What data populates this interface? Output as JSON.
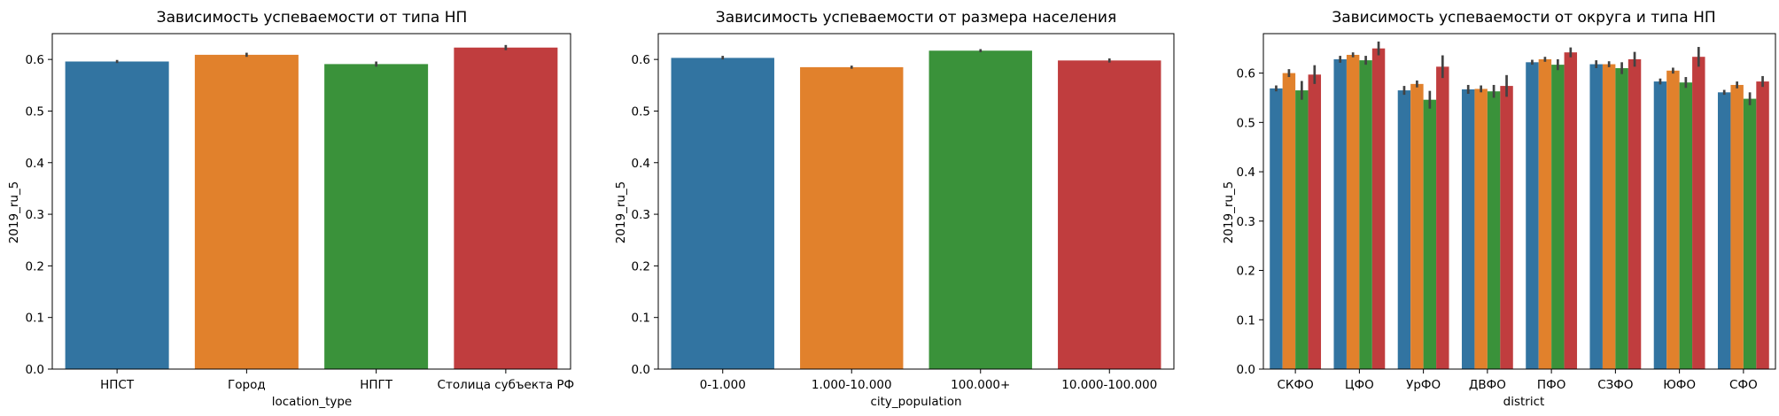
{
  "figure": {
    "background": "#ffffff"
  },
  "palette": [
    "#3274a1",
    "#e1812c",
    "#3a923a",
    "#c03d3e"
  ],
  "chart_data": [
    {
      "type": "bar",
      "title": "Зависимость успеваемости от типа НП",
      "xlabel": "location_type",
      "ylabel": "2019_ru_5",
      "ylim": [
        0,
        0.65
      ],
      "yticks": [
        "0.0",
        "0.1",
        "0.2",
        "0.3",
        "0.4",
        "0.5",
        "0.6"
      ],
      "grid": false,
      "categories": [
        "НПСТ",
        "Город",
        "НПГТ",
        "Столица субъекта РФ"
      ],
      "values": [
        0.596,
        0.609,
        0.591,
        0.623
      ],
      "ci": [
        [
          0.593,
          0.599
        ],
        [
          0.605,
          0.613
        ],
        [
          0.586,
          0.596
        ],
        [
          0.618,
          0.628
        ]
      ]
    },
    {
      "type": "bar",
      "title": "Зависимость успеваемости от размера населения",
      "xlabel": "city_population",
      "ylabel": "2019_ru_5",
      "ylim": [
        0,
        0.65
      ],
      "yticks": [
        "0.0",
        "0.1",
        "0.2",
        "0.3",
        "0.4",
        "0.5",
        "0.6"
      ],
      "grid": false,
      "categories": [
        "0-1.000",
        "1.000-10.000",
        "100.000+",
        "10.000-100.000"
      ],
      "values": [
        0.603,
        0.585,
        0.617,
        0.598
      ],
      "ci": [
        [
          0.6,
          0.607
        ],
        [
          0.582,
          0.588
        ],
        [
          0.614,
          0.62
        ],
        [
          0.594,
          0.602
        ]
      ]
    },
    {
      "type": "bar",
      "title": "Зависимость успеваемости от округа и типа НП",
      "xlabel": "district",
      "ylabel": "2019_ru_5",
      "ylim": [
        0,
        0.68
      ],
      "yticks": [
        "0.0",
        "0.1",
        "0.2",
        "0.3",
        "0.4",
        "0.5",
        "0.6"
      ],
      "grid": false,
      "categories": [
        "СКФО",
        "ЦФО",
        "УрФО",
        "ДВФО",
        "ПФО",
        "СЗФО",
        "ЮФО",
        "СФО"
      ],
      "series": [
        {
          "values": [
            0.569,
            0.628,
            0.565,
            0.567,
            0.622,
            0.618,
            0.583,
            0.561
          ],
          "ci": [
            [
              0.563,
              0.575
            ],
            [
              0.621,
              0.635
            ],
            [
              0.556,
              0.574
            ],
            [
              0.558,
              0.576
            ],
            [
              0.617,
              0.627
            ],
            [
              0.61,
              0.626
            ],
            [
              0.577,
              0.589
            ],
            [
              0.556,
              0.566
            ]
          ]
        },
        {
          "values": [
            0.6,
            0.637,
            0.578,
            0.568,
            0.628,
            0.618,
            0.605,
            0.576
          ],
          "ci": [
            [
              0.592,
              0.608
            ],
            [
              0.632,
              0.642
            ],
            [
              0.571,
              0.585
            ],
            [
              0.561,
              0.575
            ],
            [
              0.623,
              0.633
            ],
            [
              0.612,
              0.624
            ],
            [
              0.599,
              0.611
            ],
            [
              0.569,
              0.583
            ]
          ]
        },
        {
          "values": [
            0.565,
            0.626,
            0.546,
            0.563,
            0.617,
            0.61,
            0.581,
            0.548
          ],
          "ci": [
            [
              0.546,
              0.584
            ],
            [
              0.617,
              0.635
            ],
            [
              0.528,
              0.564
            ],
            [
              0.55,
              0.576
            ],
            [
              0.606,
              0.628
            ],
            [
              0.598,
              0.622
            ],
            [
              0.57,
              0.592
            ],
            [
              0.535,
              0.561
            ]
          ]
        },
        {
          "values": [
            0.597,
            0.65,
            0.613,
            0.574,
            0.642,
            0.628,
            0.633,
            0.583
          ],
          "ci": [
            [
              0.578,
              0.616
            ],
            [
              0.636,
              0.664
            ],
            [
              0.59,
              0.636
            ],
            [
              0.552,
              0.596
            ],
            [
              0.632,
              0.652
            ],
            [
              0.613,
              0.643
            ],
            [
              0.613,
              0.653
            ],
            [
              0.572,
              0.594
            ]
          ]
        }
      ]
    }
  ]
}
